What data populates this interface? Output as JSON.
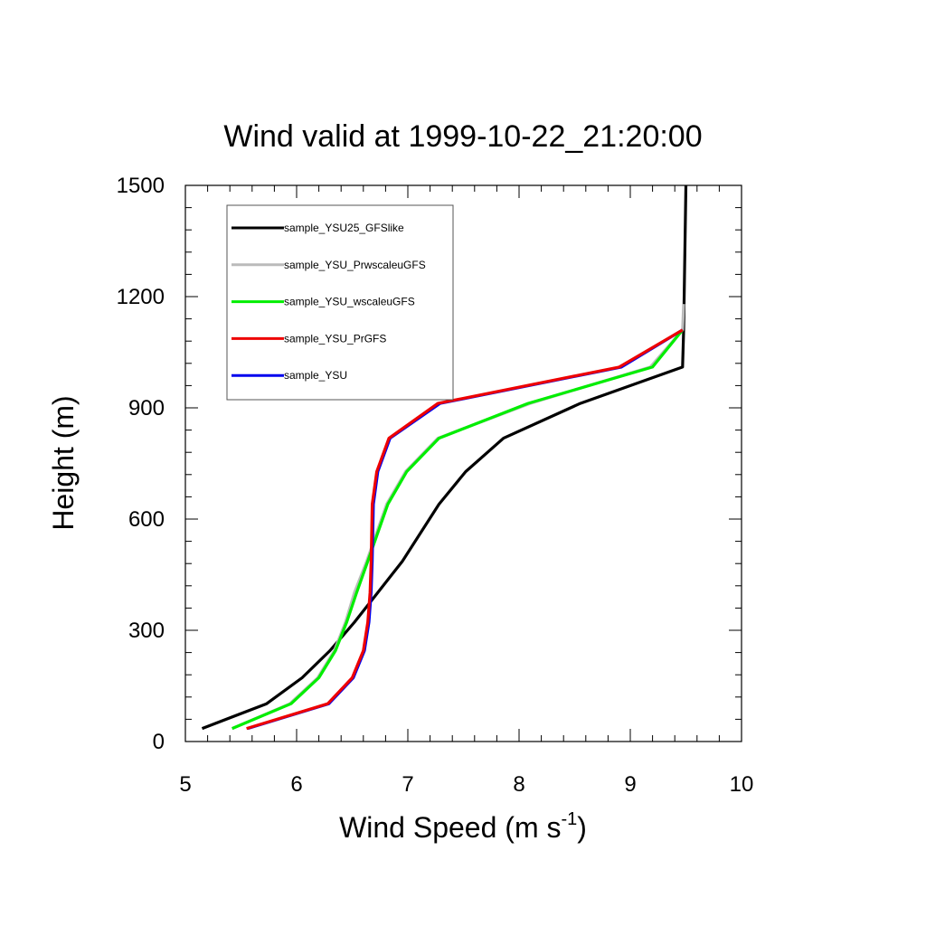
{
  "chart_data": {
    "type": "line",
    "title": "Wind valid at 1999-10-22_21:20:00",
    "xlabel": "Wind Speed (m s",
    "xlabel_superscript": "-1",
    "xlabel_suffix": ")",
    "ylabel": "Height (m)",
    "xlim": [
      5,
      10
    ],
    "ylim": [
      0,
      1500
    ],
    "xticks": [
      "5",
      "6",
      "7",
      "8",
      "9",
      "10"
    ],
    "yticks": [
      "0",
      "300",
      "600",
      "900",
      "1200",
      "1500"
    ],
    "legend_placement": "top-left",
    "series": [
      {
        "name": "sample_YSU25_GFSlike",
        "color": "#000000",
        "x": [
          5.15,
          5.73,
          6.05,
          6.3,
          6.52,
          6.73,
          6.95,
          7.28,
          7.52,
          7.86,
          8.55,
          9.47,
          9.48,
          9.5
        ],
        "y": [
          35,
          102,
          172,
          245,
          322,
          402,
          486,
          640,
          728,
          818,
          912,
          1010,
          1110,
          1500
        ]
      },
      {
        "name": "sample_YSU_PrwscaleuGFS",
        "color": "#bbbbbb",
        "x": [
          5.42,
          5.94,
          6.19,
          6.34,
          6.44,
          6.52,
          6.63,
          6.81,
          6.98,
          7.27,
          8.1,
          9.18,
          9.47,
          9.48
        ],
        "y": [
          35,
          102,
          172,
          245,
          322,
          402,
          486,
          640,
          728,
          818,
          912,
          1010,
          1110,
          1180
        ]
      },
      {
        "name": "sample_YSU_wscaleuGFS",
        "color": "#00ee00",
        "x": [
          5.42,
          5.95,
          6.2,
          6.35,
          6.45,
          6.54,
          6.64,
          6.82,
          6.99,
          7.28,
          8.08,
          9.2,
          9.47
        ],
        "y": [
          35,
          102,
          172,
          245,
          322,
          402,
          486,
          640,
          728,
          818,
          912,
          1010,
          1110
        ]
      },
      {
        "name": "sample_YSU_PrGFS",
        "color": "#ee0000",
        "x": [
          5.55,
          6.28,
          6.5,
          6.6,
          6.64,
          6.66,
          6.67,
          6.68,
          6.72,
          6.83,
          7.27,
          8.9,
          9.47
        ],
        "y": [
          35,
          102,
          172,
          245,
          322,
          402,
          486,
          640,
          728,
          818,
          912,
          1010,
          1110
        ]
      },
      {
        "name": "sample_YSU",
        "color": "#0000ee",
        "x": [
          5.56,
          6.29,
          6.51,
          6.61,
          6.65,
          6.67,
          6.68,
          6.69,
          6.73,
          6.84,
          7.29,
          8.92,
          9.47
        ],
        "y": [
          35,
          102,
          172,
          245,
          322,
          402,
          486,
          640,
          728,
          818,
          912,
          1010,
          1110
        ]
      }
    ],
    "draw_order": [
      0,
      1,
      2,
      4,
      3
    ]
  }
}
